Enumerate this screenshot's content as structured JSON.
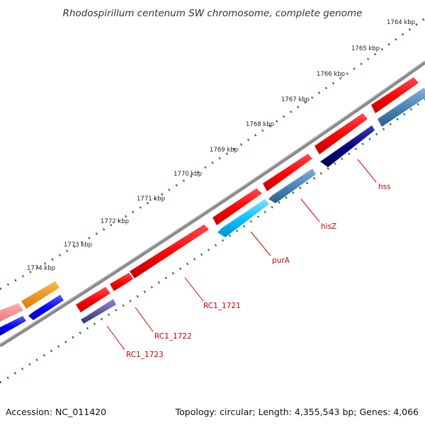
{
  "title": "Rhodospirillum centenum SW chromosome, complete genome",
  "scale_labels": [
    "1764 kbp",
    "1765 kbp",
    "1766 kbp",
    "1767 kbp",
    "1768 kbp",
    "1769 kbp",
    "1770 kbp",
    "1771 kbp",
    "1772 kbp",
    "1773 kbp",
    "1774 kbp"
  ],
  "gene_labels": [
    "hss",
    "hisZ",
    "purA",
    "RC1_1721",
    "RC1_1722",
    "RC1_1723"
  ],
  "footer": {
    "accession": "Accession: NC_011420",
    "stats": "Topology: circular; Length: 4,355,543 bp; Genes: 4,066"
  },
  "colors": {
    "backbone": "#808080",
    "scale_ticks": "#227722",
    "forward_gene": "#ff0000",
    "reverse_gene": "#4682b4",
    "reverse_gene_alt": "#00bfff",
    "reverse_gene_dark": "#000080",
    "label_text": "#cc0000"
  }
}
